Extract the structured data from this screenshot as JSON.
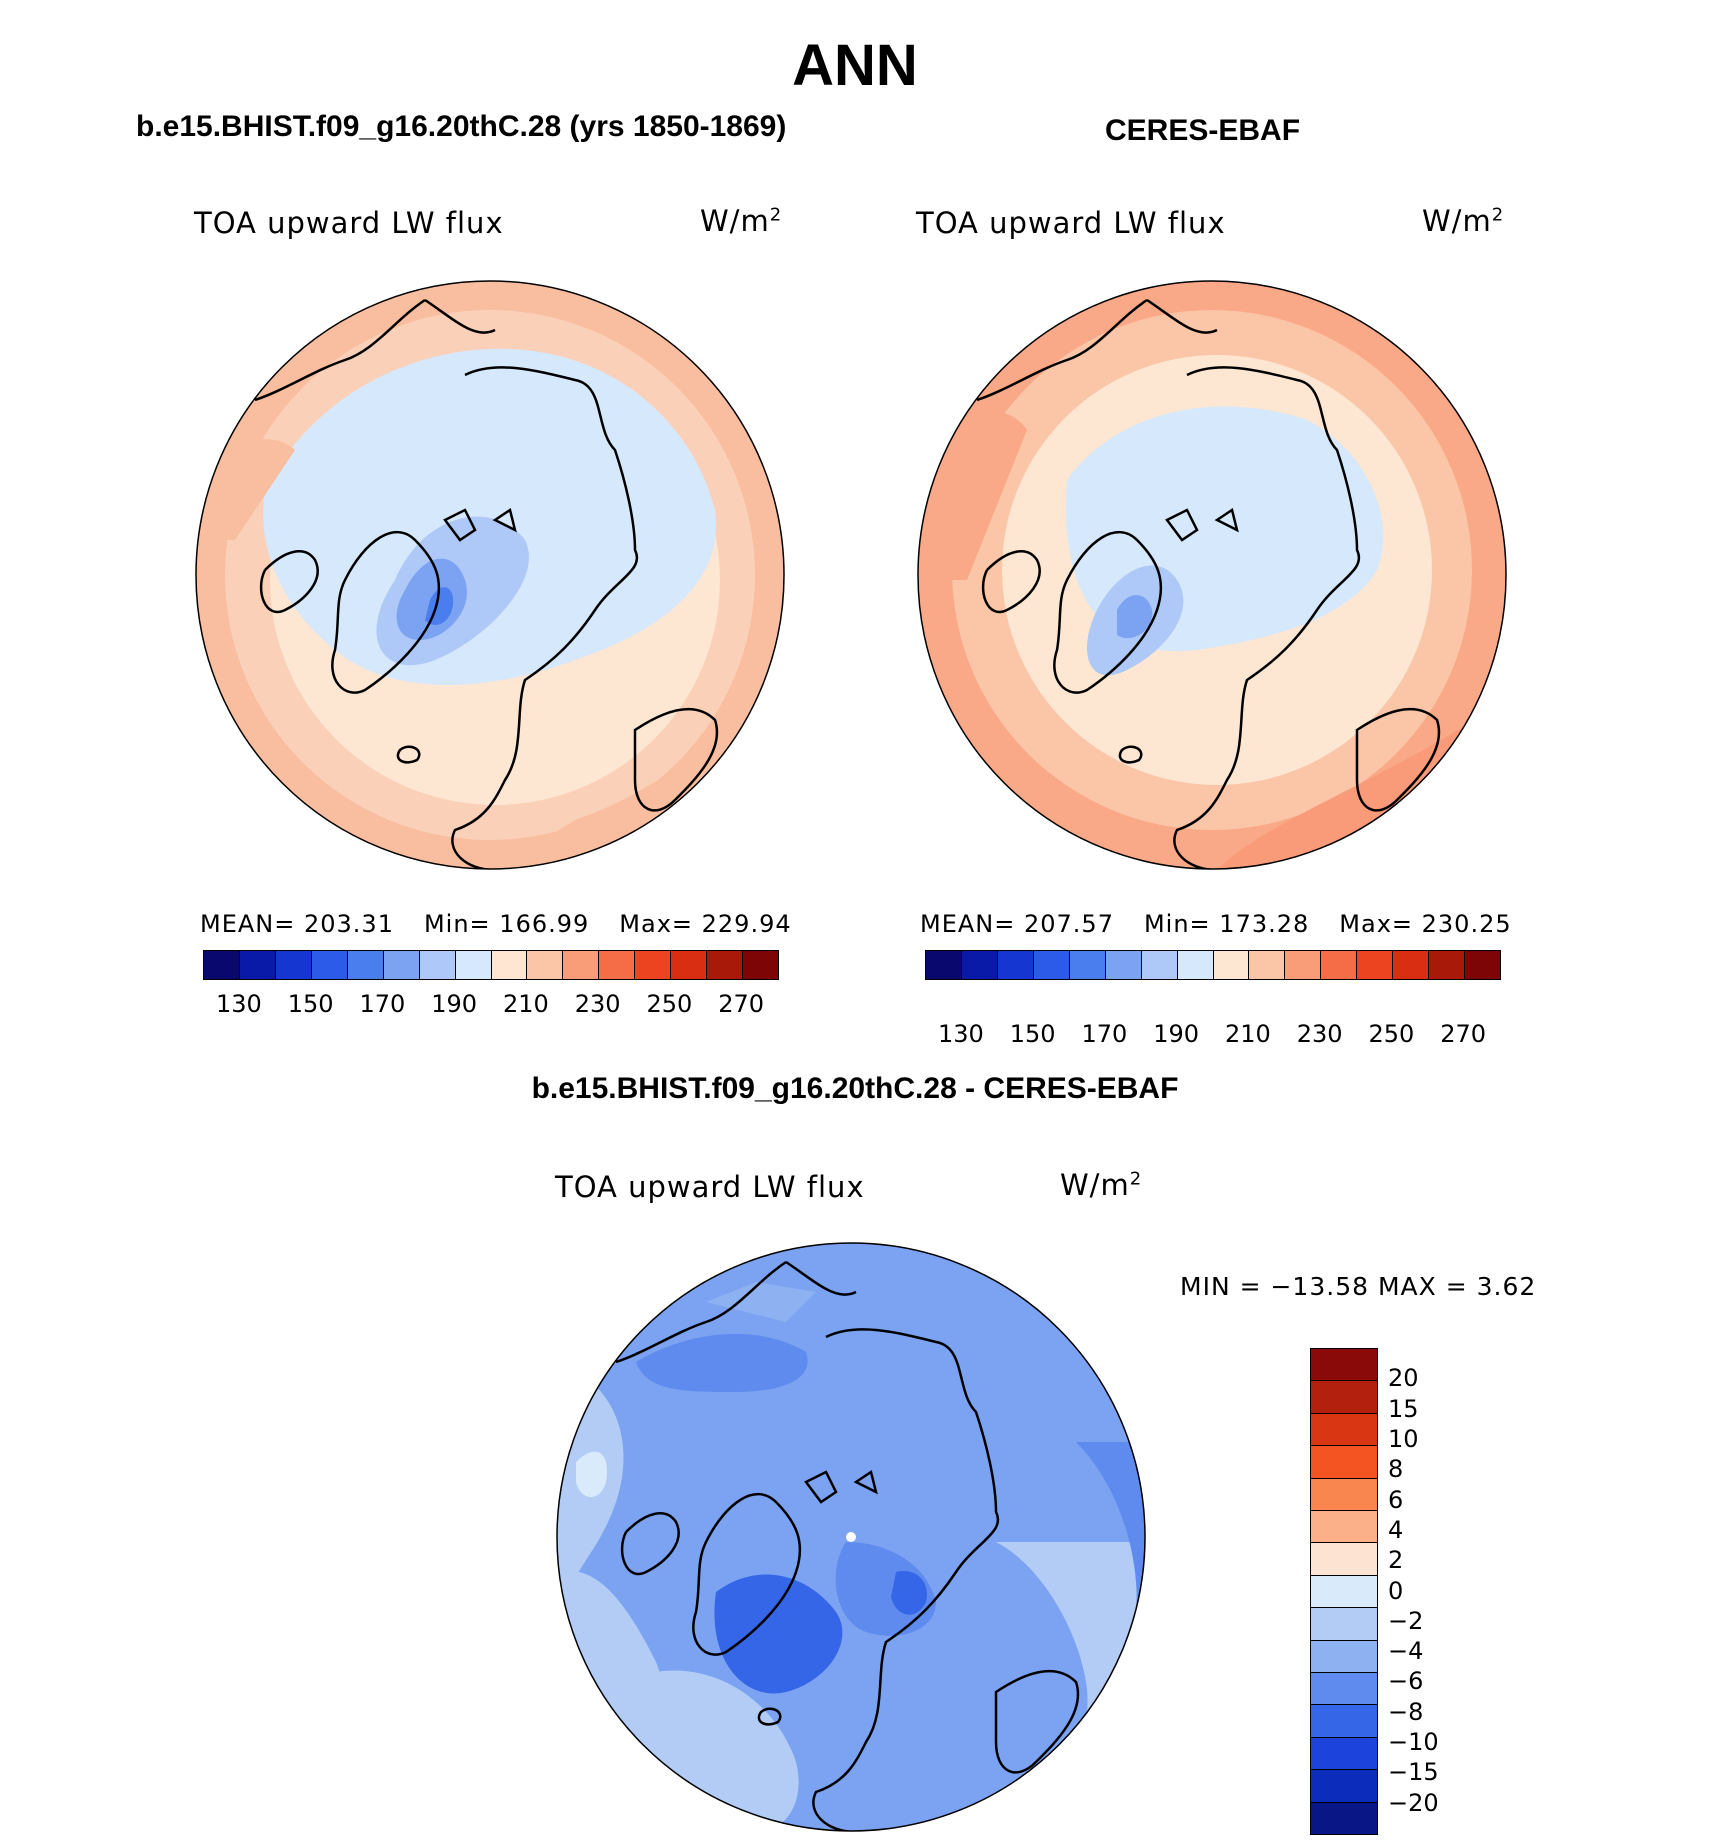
{
  "page": {
    "title": "ANN",
    "diff_title": "b.e15.BHIST.f09_g16.20thC.28 - CERES-EBAF"
  },
  "panels": [
    {
      "id": "model",
      "title": "b.e15.BHIST.f09_g16.20thC.28 (yrs 1850-1869)",
      "variable": "TOA upward LW flux",
      "units_base": "W/m",
      "units_exp": "2",
      "stats": {
        "mean": "MEAN= 203.31",
        "min": "Min= 166.99",
        "max": "Max= 229.94"
      },
      "colorbar_colors": [
        "#08086e",
        "#0a1aa8",
        "#1636d2",
        "#2b5be8",
        "#4a7ded",
        "#7ba3f2",
        "#aec8f7",
        "#d6e8fb",
        "#fde6d2",
        "#fbc5a8",
        "#f89d78",
        "#f46d46",
        "#ec4420",
        "#d92e12",
        "#a8190a",
        "#7d0505"
      ],
      "colorbar_ticks": [
        "130",
        "150",
        "170",
        "190",
        "210",
        "230",
        "250",
        "270"
      ]
    },
    {
      "id": "obs",
      "title": "CERES-EBAF",
      "variable": "TOA upward LW flux",
      "units_base": "W/m",
      "units_exp": "2",
      "stats": {
        "mean": "MEAN= 207.57",
        "min": "Min= 173.28",
        "max": "Max= 230.25"
      },
      "colorbar_colors": [
        "#08086e",
        "#0a1aa8",
        "#1636d2",
        "#2b5be8",
        "#4a7ded",
        "#7ba3f2",
        "#aec8f7",
        "#d6e8fb",
        "#fde6d2",
        "#fbc5a8",
        "#f89d78",
        "#f46d46",
        "#ec4420",
        "#d92e12",
        "#a8190a",
        "#7d0505"
      ],
      "colorbar_ticks": [
        "130",
        "150",
        "170",
        "190",
        "210",
        "230",
        "250",
        "270"
      ]
    }
  ],
  "diff_panel": {
    "variable": "TOA upward LW flux",
    "units_base": "W/m",
    "units_exp": "2",
    "minmax": "MIN = −13.58 MAX =    3.62",
    "colorbar_colors_top_to_bottom": [
      "#8a0a0a",
      "#b3200e",
      "#d93614",
      "#f45421",
      "#f9864e",
      "#fbb08a",
      "#fde4d2",
      "#d9ebfb",
      "#b2ccf6",
      "#8eb1f2",
      "#5f8bee",
      "#3566e8",
      "#1c44dc",
      "#0c2cbc",
      "#081686"
    ],
    "colorbar_ticks_top_to_bottom": [
      "20",
      "15",
      "10",
      "8",
      "6",
      "4",
      "2",
      "0",
      "−2",
      "−4",
      "−6",
      "−8",
      "−10",
      "−15",
      "−20"
    ]
  },
  "colors": {
    "model_warm": "#fbd6c3",
    "model_cool": "#d6e8fb",
    "obs_warm": "#fbd0b8",
    "diff_base": "#8eb1f2"
  }
}
